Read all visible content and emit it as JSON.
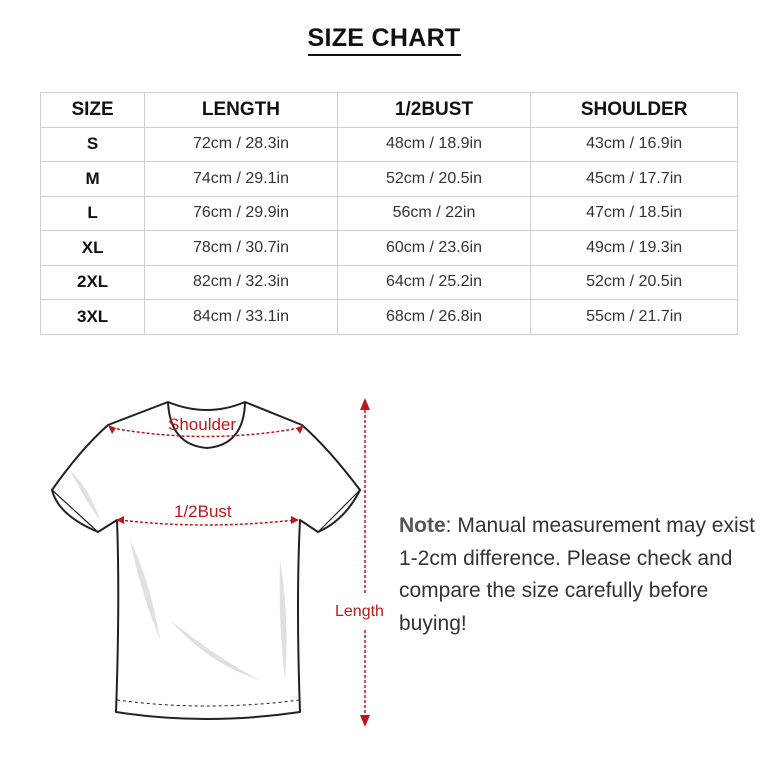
{
  "title": "SIZE CHART",
  "table": {
    "headers": [
      "SIZE",
      "LENGTH",
      "1/2BUST",
      "SHOULDER"
    ],
    "rows": [
      [
        "S",
        "72cm / 28.3in",
        "48cm / 18.9in",
        "43cm / 16.9in"
      ],
      [
        "M",
        "74cm / 29.1in",
        "52cm / 20.5in",
        "45cm / 17.7in"
      ],
      [
        "L",
        "76cm / 29.9in",
        "56cm / 22in",
        "47cm / 18.5in"
      ],
      [
        "XL",
        "78cm / 30.7in",
        "60cm / 23.6in",
        "49cm / 19.3in"
      ],
      [
        "2XL",
        "82cm / 32.3in",
        "64cm / 25.2in",
        "52cm / 20.5in"
      ],
      [
        "3XL",
        "84cm / 33.1in",
        "68cm / 26.8in",
        "55cm / 21.7in"
      ]
    ]
  },
  "diagram": {
    "shoulder_label": "Shoulder",
    "bust_label": "1/2Bust",
    "length_label": "Length",
    "accent_color": "#c0161b"
  },
  "note": {
    "prefix": "Note",
    "text": ": Manual measurement may exist 1-2cm difference. Please check and compare the size carefully before buying!"
  }
}
